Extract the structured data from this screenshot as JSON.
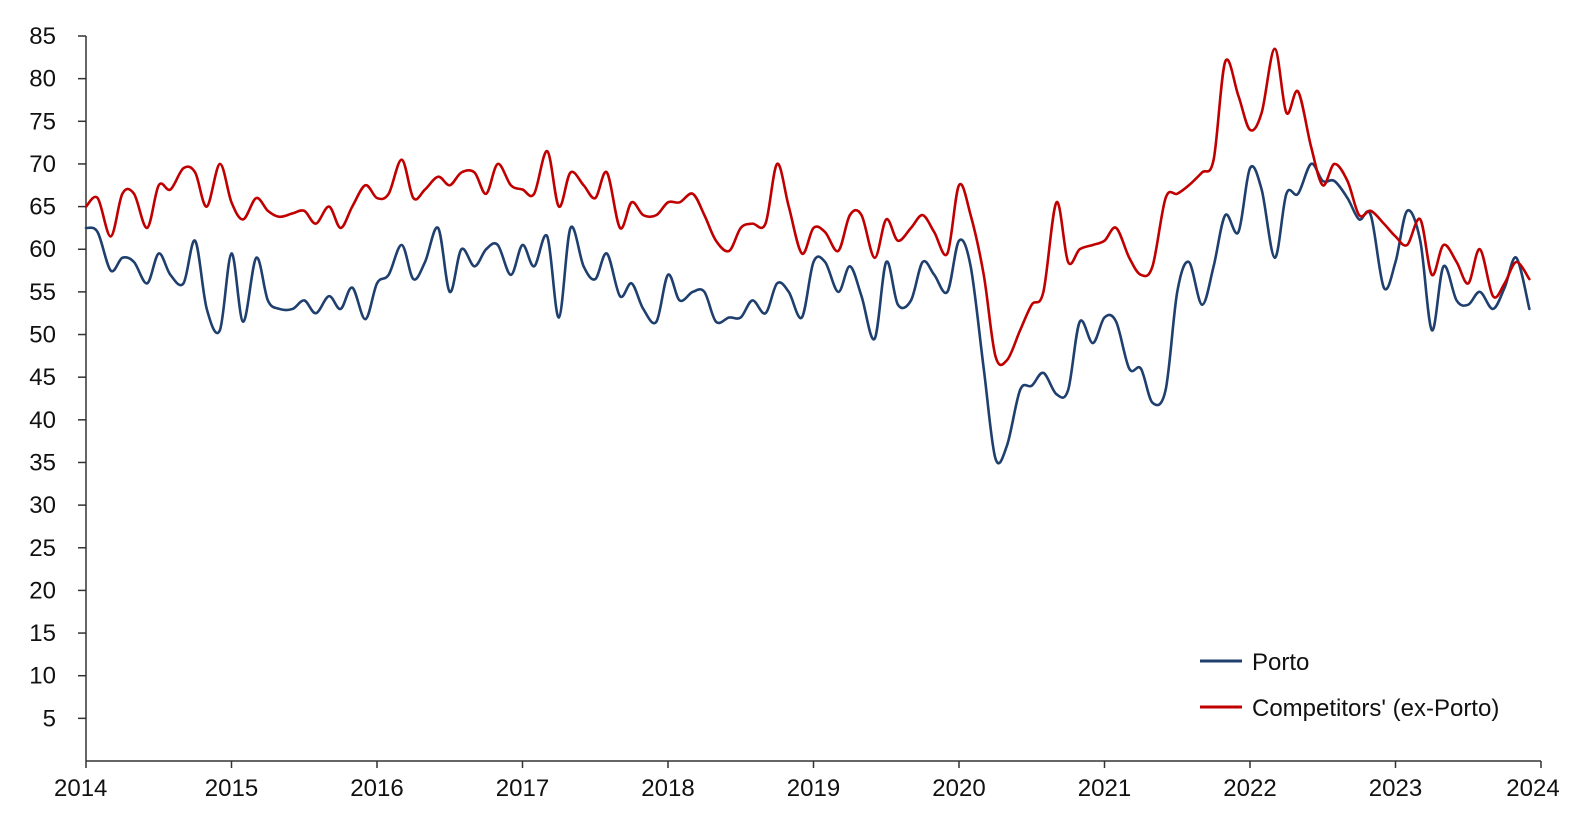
{
  "colors": {
    "porto": "#1f3f6e",
    "competitors": "#c00000",
    "axis": "#333333",
    "background": "#ffffff"
  },
  "chart_data": {
    "type": "line",
    "title": "",
    "xlabel": "",
    "ylabel": "",
    "xlim": [
      2014,
      2024
    ],
    "ylim": [
      0,
      85
    ],
    "y_ticks": [
      5,
      10,
      15,
      20,
      25,
      30,
      35,
      40,
      45,
      50,
      55,
      60,
      65,
      70,
      75,
      80,
      85
    ],
    "x_ticks": [
      "2014",
      "2015",
      "2016",
      "2017",
      "2018",
      "2019",
      "2020",
      "2021",
      "2022",
      "2023",
      "2024"
    ],
    "grid": false,
    "legend": {
      "placement": "bottom-right",
      "entries": [
        "Porto",
        "Competitors' (ex-Porto)"
      ]
    },
    "series": [
      {
        "name": "Porto",
        "color": "#1f3f6e",
        "points": [
          [
            2014.0,
            62.5
          ],
          [
            2014.08,
            62.0
          ],
          [
            2014.17,
            57.5
          ],
          [
            2014.25,
            59.0
          ],
          [
            2014.33,
            58.5
          ],
          [
            2014.42,
            56.0
          ],
          [
            2014.5,
            59.5
          ],
          [
            2014.58,
            57.0
          ],
          [
            2014.67,
            56.0
          ],
          [
            2014.75,
            61.0
          ],
          [
            2014.83,
            53.0
          ],
          [
            2014.92,
            50.5
          ],
          [
            2015.0,
            59.5
          ],
          [
            2015.08,
            51.5
          ],
          [
            2015.17,
            59.0
          ],
          [
            2015.25,
            54.0
          ],
          [
            2015.33,
            53.0
          ],
          [
            2015.42,
            53.0
          ],
          [
            2015.5,
            54.0
          ],
          [
            2015.58,
            52.5
          ],
          [
            2015.67,
            54.5
          ],
          [
            2015.75,
            53.0
          ],
          [
            2015.83,
            55.5
          ],
          [
            2015.92,
            51.8
          ],
          [
            2016.0,
            56.0
          ],
          [
            2016.08,
            57.0
          ],
          [
            2016.17,
            60.5
          ],
          [
            2016.25,
            56.5
          ],
          [
            2016.33,
            58.5
          ],
          [
            2016.42,
            62.5
          ],
          [
            2016.5,
            55.0
          ],
          [
            2016.58,
            60.0
          ],
          [
            2016.67,
            58.0
          ],
          [
            2016.75,
            60.0
          ],
          [
            2016.83,
            60.5
          ],
          [
            2016.92,
            57.0
          ],
          [
            2017.0,
            60.5
          ],
          [
            2017.08,
            58.0
          ],
          [
            2017.17,
            61.5
          ],
          [
            2017.25,
            52.0
          ],
          [
            2017.33,
            62.5
          ],
          [
            2017.42,
            58.0
          ],
          [
            2017.5,
            56.5
          ],
          [
            2017.58,
            59.5
          ],
          [
            2017.67,
            54.5
          ],
          [
            2017.75,
            56.0
          ],
          [
            2017.83,
            53.0
          ],
          [
            2017.92,
            51.5
          ],
          [
            2018.0,
            57.0
          ],
          [
            2018.08,
            54.0
          ],
          [
            2018.17,
            55.0
          ],
          [
            2018.25,
            55.0
          ],
          [
            2018.33,
            51.5
          ],
          [
            2018.42,
            52.0
          ],
          [
            2018.5,
            52.0
          ],
          [
            2018.58,
            54.0
          ],
          [
            2018.67,
            52.5
          ],
          [
            2018.75,
            56.0
          ],
          [
            2018.83,
            55.0
          ],
          [
            2018.92,
            52.0
          ],
          [
            2019.0,
            58.5
          ],
          [
            2019.08,
            58.5
          ],
          [
            2019.17,
            55.0
          ],
          [
            2019.25,
            58.0
          ],
          [
            2019.33,
            54.5
          ],
          [
            2019.42,
            49.5
          ],
          [
            2019.5,
            58.5
          ],
          [
            2019.58,
            53.5
          ],
          [
            2019.67,
            54.0
          ],
          [
            2019.75,
            58.5
          ],
          [
            2019.83,
            57.0
          ],
          [
            2019.92,
            55.0
          ],
          [
            2020.0,
            61.0
          ],
          [
            2020.08,
            58.0
          ],
          [
            2020.17,
            46.0
          ],
          [
            2020.25,
            35.5
          ],
          [
            2020.33,
            37.0
          ],
          [
            2020.42,
            43.5
          ],
          [
            2020.5,
            44.0
          ],
          [
            2020.58,
            45.5
          ],
          [
            2020.67,
            43.0
          ],
          [
            2020.75,
            43.5
          ],
          [
            2020.83,
            51.5
          ],
          [
            2020.92,
            49.0
          ],
          [
            2021.0,
            52.0
          ],
          [
            2021.08,
            51.5
          ],
          [
            2021.17,
            46.0
          ],
          [
            2021.25,
            46.0
          ],
          [
            2021.33,
            42.0
          ],
          [
            2021.42,
            43.5
          ],
          [
            2021.5,
            55.0
          ],
          [
            2021.58,
            58.5
          ],
          [
            2021.67,
            53.5
          ],
          [
            2021.75,
            58.0
          ],
          [
            2021.83,
            64.0
          ],
          [
            2021.92,
            62.0
          ],
          [
            2022.0,
            69.5
          ],
          [
            2022.08,
            67.0
          ],
          [
            2022.17,
            59.0
          ],
          [
            2022.25,
            66.5
          ],
          [
            2022.33,
            66.5
          ],
          [
            2022.42,
            70.0
          ],
          [
            2022.5,
            68.0
          ],
          [
            2022.58,
            68.0
          ],
          [
            2022.67,
            66.0
          ],
          [
            2022.75,
            63.5
          ],
          [
            2022.83,
            64.0
          ],
          [
            2022.92,
            55.5
          ],
          [
            2023.0,
            58.5
          ],
          [
            2023.08,
            64.5
          ],
          [
            2023.17,
            61.0
          ],
          [
            2023.25,
            50.5
          ],
          [
            2023.33,
            58.0
          ],
          [
            2023.42,
            54.0
          ],
          [
            2023.5,
            53.5
          ],
          [
            2023.58,
            55.0
          ],
          [
            2023.67,
            53.0
          ],
          [
            2023.75,
            55.5
          ],
          [
            2023.83,
            59.0
          ],
          [
            2023.92,
            53.0
          ]
        ]
      },
      {
        "name": "Competitors' (ex-Porto)",
        "color": "#c00000",
        "points": [
          [
            2014.0,
            65.0
          ],
          [
            2014.08,
            66.0
          ],
          [
            2014.17,
            61.5
          ],
          [
            2014.25,
            66.5
          ],
          [
            2014.33,
            66.5
          ],
          [
            2014.42,
            62.5
          ],
          [
            2014.5,
            67.5
          ],
          [
            2014.58,
            67.0
          ],
          [
            2014.67,
            69.5
          ],
          [
            2014.75,
            69.0
          ],
          [
            2014.83,
            65.0
          ],
          [
            2014.92,
            70.0
          ],
          [
            2015.0,
            65.5
          ],
          [
            2015.08,
            63.5
          ],
          [
            2015.17,
            66.0
          ],
          [
            2015.25,
            64.5
          ],
          [
            2015.33,
            63.8
          ],
          [
            2015.42,
            64.2
          ],
          [
            2015.5,
            64.5
          ],
          [
            2015.58,
            63.0
          ],
          [
            2015.67,
            65.0
          ],
          [
            2015.75,
            62.5
          ],
          [
            2015.83,
            65.0
          ],
          [
            2015.92,
            67.5
          ],
          [
            2016.0,
            66.0
          ],
          [
            2016.08,
            66.5
          ],
          [
            2016.17,
            70.5
          ],
          [
            2016.25,
            66.0
          ],
          [
            2016.33,
            67.0
          ],
          [
            2016.42,
            68.5
          ],
          [
            2016.5,
            67.5
          ],
          [
            2016.58,
            69.0
          ],
          [
            2016.67,
            69.0
          ],
          [
            2016.75,
            66.5
          ],
          [
            2016.83,
            70.0
          ],
          [
            2016.92,
            67.5
          ],
          [
            2017.0,
            67.0
          ],
          [
            2017.08,
            66.5
          ],
          [
            2017.17,
            71.5
          ],
          [
            2017.25,
            65.0
          ],
          [
            2017.33,
            69.0
          ],
          [
            2017.42,
            67.5
          ],
          [
            2017.5,
            66.0
          ],
          [
            2017.58,
            69.0
          ],
          [
            2017.67,
            62.5
          ],
          [
            2017.75,
            65.5
          ],
          [
            2017.83,
            64.0
          ],
          [
            2017.92,
            64.0
          ],
          [
            2018.0,
            65.5
          ],
          [
            2018.08,
            65.5
          ],
          [
            2018.17,
            66.5
          ],
          [
            2018.25,
            64.0
          ],
          [
            2018.33,
            61.0
          ],
          [
            2018.42,
            59.8
          ],
          [
            2018.5,
            62.5
          ],
          [
            2018.58,
            63.0
          ],
          [
            2018.67,
            63.0
          ],
          [
            2018.75,
            70.0
          ],
          [
            2018.83,
            65.0
          ],
          [
            2018.92,
            59.5
          ],
          [
            2019.0,
            62.5
          ],
          [
            2019.08,
            62.0
          ],
          [
            2019.17,
            59.8
          ],
          [
            2019.25,
            64.0
          ],
          [
            2019.33,
            64.0
          ],
          [
            2019.42,
            59.0
          ],
          [
            2019.5,
            63.5
          ],
          [
            2019.58,
            61.0
          ],
          [
            2019.67,
            62.5
          ],
          [
            2019.75,
            64.0
          ],
          [
            2019.83,
            62.0
          ],
          [
            2019.92,
            59.5
          ],
          [
            2020.0,
            67.5
          ],
          [
            2020.08,
            64.0
          ],
          [
            2020.17,
            57.0
          ],
          [
            2020.25,
            47.5
          ],
          [
            2020.33,
            47.0
          ],
          [
            2020.42,
            50.5
          ],
          [
            2020.5,
            53.5
          ],
          [
            2020.58,
            55.0
          ],
          [
            2020.67,
            65.5
          ],
          [
            2020.75,
            58.5
          ],
          [
            2020.83,
            60.0
          ],
          [
            2020.92,
            60.5
          ],
          [
            2021.0,
            61.0
          ],
          [
            2021.08,
            62.5
          ],
          [
            2021.17,
            59.0
          ],
          [
            2021.25,
            57.0
          ],
          [
            2021.33,
            58.0
          ],
          [
            2021.42,
            66.0
          ],
          [
            2021.5,
            66.5
          ],
          [
            2021.58,
            67.5
          ],
          [
            2021.67,
            69.0
          ],
          [
            2021.75,
            70.5
          ],
          [
            2021.83,
            82.0
          ],
          [
            2021.92,
            78.0
          ],
          [
            2022.0,
            74.0
          ],
          [
            2022.08,
            76.0
          ],
          [
            2022.17,
            83.5
          ],
          [
            2022.25,
            76.0
          ],
          [
            2022.33,
            78.5
          ],
          [
            2022.42,
            72.0
          ],
          [
            2022.5,
            67.5
          ],
          [
            2022.58,
            70.0
          ],
          [
            2022.67,
            68.0
          ],
          [
            2022.75,
            64.0
          ],
          [
            2022.83,
            64.5
          ],
          [
            2022.92,
            63.0
          ],
          [
            2023.0,
            61.5
          ],
          [
            2023.08,
            60.5
          ],
          [
            2023.17,
            63.5
          ],
          [
            2023.25,
            57.0
          ],
          [
            2023.33,
            60.5
          ],
          [
            2023.42,
            58.5
          ],
          [
            2023.5,
            56.0
          ],
          [
            2023.58,
            60.0
          ],
          [
            2023.67,
            54.5
          ],
          [
            2023.75,
            56.0
          ],
          [
            2023.83,
            58.5
          ],
          [
            2023.92,
            56.5
          ]
        ]
      }
    ]
  }
}
